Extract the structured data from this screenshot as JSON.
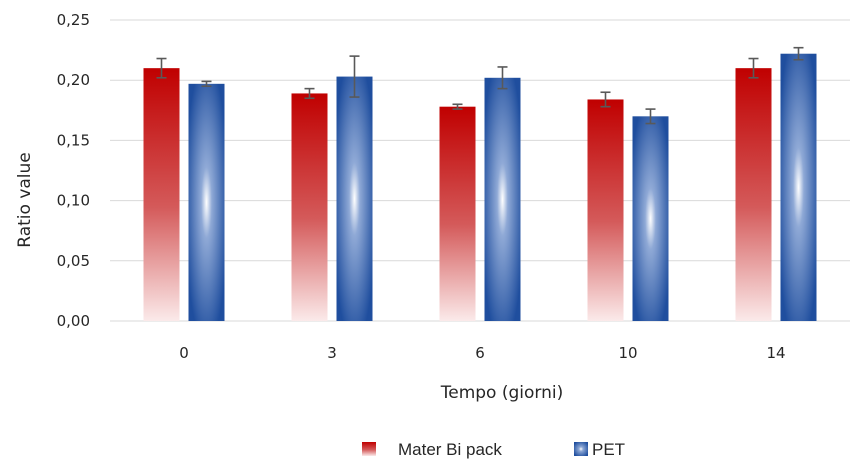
{
  "chart_data": {
    "type": "bar",
    "title": "",
    "xlabel": "Tempo (giorni)",
    "ylabel": "Ratio value",
    "categories": [
      "0",
      "3",
      "6",
      "10",
      "14"
    ],
    "ylim": [
      0,
      0.25
    ],
    "yticks": [
      "0,00",
      "0,05",
      "0,10",
      "0,15",
      "0,20",
      "0,25"
    ],
    "grid": true,
    "legend_position": "bottom",
    "series": [
      {
        "name": "Mater Bi pack",
        "color": "#c00000",
        "values": [
          0.21,
          0.189,
          0.178,
          0.184,
          0.21
        ],
        "errors": [
          0.008,
          0.004,
          0.002,
          0.006,
          0.008
        ]
      },
      {
        "name": "PET",
        "color": "#1f4e9e",
        "values": [
          0.197,
          0.203,
          0.202,
          0.17,
          0.222
        ],
        "errors": [
          0.002,
          0.017,
          0.009,
          0.006,
          0.005
        ]
      }
    ]
  }
}
